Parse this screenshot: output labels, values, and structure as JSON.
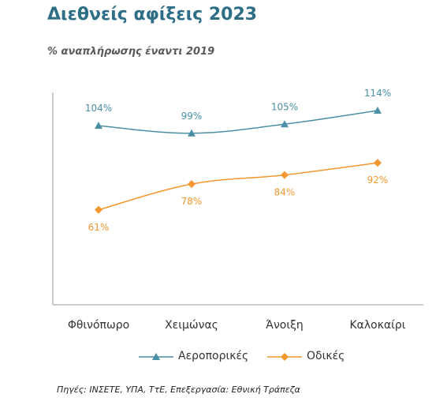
{
  "title": "Διεθνείς αφίξεις 2023",
  "subtitle": "% αναπλήρωσης έναντι 2019",
  "source": "Πηγές: ΙΝΣΕΤΕ, ΥΠΑ, ΤτΕ, Επεξεργασία: Εθνική Τράπεζα",
  "colors": {
    "air": "#4a8fa6",
    "road": "#f4962e",
    "title": "#2d6e86",
    "axis": "#999999"
  },
  "chart_data": {
    "type": "line",
    "categories": [
      "Φθινόπωρο",
      "Χειμώνας",
      "Άνοιξη",
      "Καλοκαίρι"
    ],
    "series": [
      {
        "name": "Αεροπορικές",
        "values": [
          104,
          99,
          105,
          114
        ],
        "labels": [
          "104%",
          "99%",
          "105%",
          "114%"
        ],
        "marker": "triangle",
        "color": "#4a8fa6"
      },
      {
        "name": "Οδικές",
        "values": [
          61,
          78,
          84,
          92
        ],
        "labels": [
          "61%",
          "78%",
          "84%",
          "92%"
        ],
        "marker": "diamond",
        "color": "#f4962e"
      }
    ],
    "ylim": [
      0,
      140
    ],
    "grid": false,
    "legend": "bottom"
  }
}
